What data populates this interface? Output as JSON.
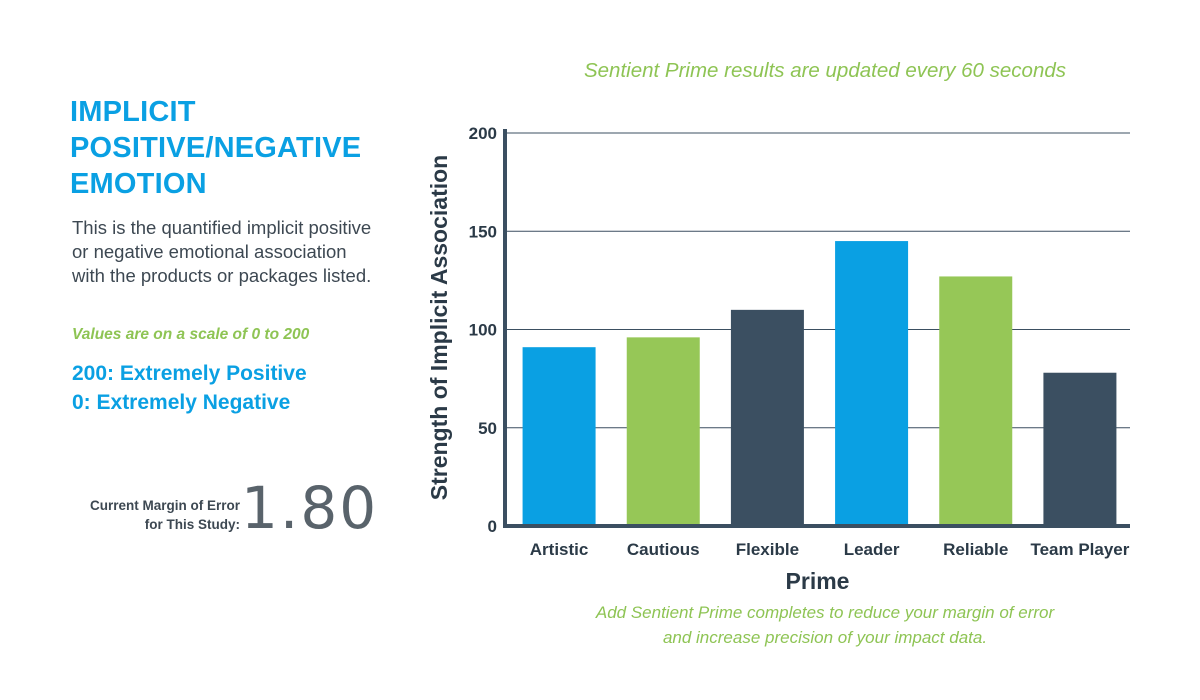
{
  "panel": {
    "title_lines": [
      "IMPLICIT",
      "POSITIVE/NEGATIVE",
      "EMOTION"
    ],
    "description": "This is the quantified implicit positive or negative emotional association with the products or packages listed.",
    "scale_note": "Values are on a scale of 0 to 200",
    "scale_lines": [
      "200: Extremely Positive",
      "0: Extremely Negative"
    ],
    "margin_label_lines": [
      "Current Margin of Error",
      "for This Study:"
    ],
    "margin_value": "1.80"
  },
  "subtitle": "Sentient Prime results are updated every 60 seconds",
  "footnote_lines": [
    "Add Sentient Prime completes to reduce your margin of error",
    "and increase precision of your impact data."
  ],
  "colors": {
    "blue": "#0aa0e3",
    "green": "#96c757",
    "navy": "#3b4f61",
    "text": "#2b3a47",
    "accent_green": "#8ec454"
  },
  "chart_data": {
    "type": "bar",
    "categories": [
      "Artistic",
      "Cautious",
      "Flexible",
      "Leader",
      "Reliable",
      "Team Player"
    ],
    "values": [
      91,
      96,
      110,
      145,
      127,
      78
    ],
    "bar_colors": [
      "#0aa0e3",
      "#96c757",
      "#3b4f61",
      "#0aa0e3",
      "#96c757",
      "#3b4f61"
    ],
    "xlabel": "Prime",
    "ylabel": "Strength of Implicit Association",
    "ylim": [
      0,
      200
    ],
    "yticks": [
      0,
      50,
      100,
      150,
      200
    ],
    "grid": true
  }
}
